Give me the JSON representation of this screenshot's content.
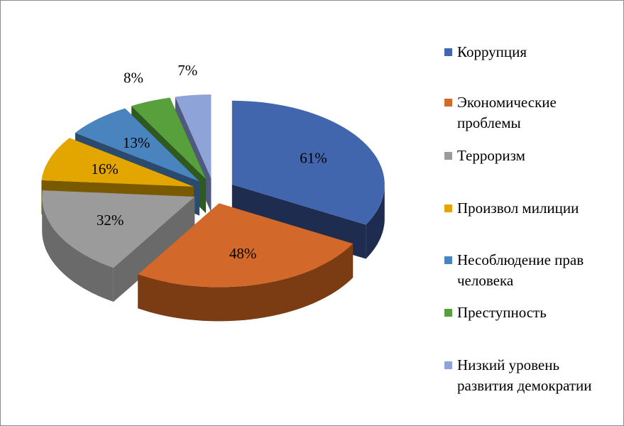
{
  "chart_data": {
    "type": "pie",
    "style": "3d-exploded",
    "title": "",
    "legend_position": "right",
    "categories": [
      "Коррупция",
      "Экономические проблемы",
      "Терроризм",
      "Произвол милиции",
      "Несоблюдение прав человека",
      "Преступность",
      "Низкий уровень развития демократии"
    ],
    "legend_lines": [
      [
        "Коррупция"
      ],
      [
        "Экономические",
        "проблемы"
      ],
      [
        "Терроризм"
      ],
      [
        "Произвол милиции"
      ],
      [
        "Несоблюдение прав",
        "человека"
      ],
      [
        "Преступность"
      ],
      [
        "Низкий уровень",
        "развития демократии"
      ]
    ],
    "values": [
      61,
      48,
      32,
      16,
      13,
      8,
      7
    ],
    "data_labels": [
      "61%",
      "48%",
      "32%",
      "16%",
      "13%",
      "8%",
      "7%"
    ],
    "colors": [
      "#4166AE",
      "#D2692A",
      "#9B9B9B",
      "#E3A600",
      "#4A84BF",
      "#58A03B",
      "#8EA3D8"
    ],
    "side_colors": [
      "#1E2D4F",
      "#7B3B13",
      "#6A6A6A",
      "#7A5A00",
      "#2A4B6E",
      "#2E5A1F",
      "#4E5B7E"
    ]
  }
}
